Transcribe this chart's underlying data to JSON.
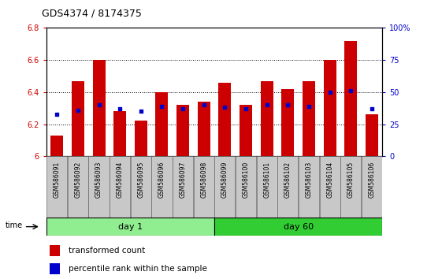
{
  "title": "GDS4374 / 8174375",
  "samples": [
    "GSM586091",
    "GSM586092",
    "GSM586093",
    "GSM586094",
    "GSM586095",
    "GSM586096",
    "GSM586097",
    "GSM586098",
    "GSM586099",
    "GSM586100",
    "GSM586101",
    "GSM586102",
    "GSM586103",
    "GSM586104",
    "GSM586105",
    "GSM586106"
  ],
  "transformed_count": [
    6.13,
    6.47,
    6.6,
    6.28,
    6.22,
    6.4,
    6.32,
    6.34,
    6.46,
    6.32,
    6.47,
    6.42,
    6.47,
    6.6,
    6.72,
    6.26
  ],
  "percentile": [
    33,
    36,
    40,
    37,
    35,
    39,
    37,
    40,
    38,
    37,
    40,
    40,
    39,
    50,
    51,
    37
  ],
  "day1_count": 8,
  "day60_count": 8,
  "bar_color": "#CC0000",
  "dot_color": "#0000CC",
  "day1_color": "#90EE90",
  "day60_color": "#32CD32",
  "sample_bg_color": "#C8C8C8",
  "sample_border_color": "#888888",
  "ylim": [
    6.0,
    6.8
  ],
  "ytick_vals": [
    6.0,
    6.2,
    6.4,
    6.6,
    6.8
  ],
  "ytick_labels": [
    "6",
    "6.2",
    "6.4",
    "6.6",
    "6.8"
  ],
  "pct_ytick_vals": [
    0,
    25,
    50,
    75,
    100
  ],
  "pct_ytick_labels": [
    "0",
    "25",
    "50",
    "75",
    "100%"
  ]
}
